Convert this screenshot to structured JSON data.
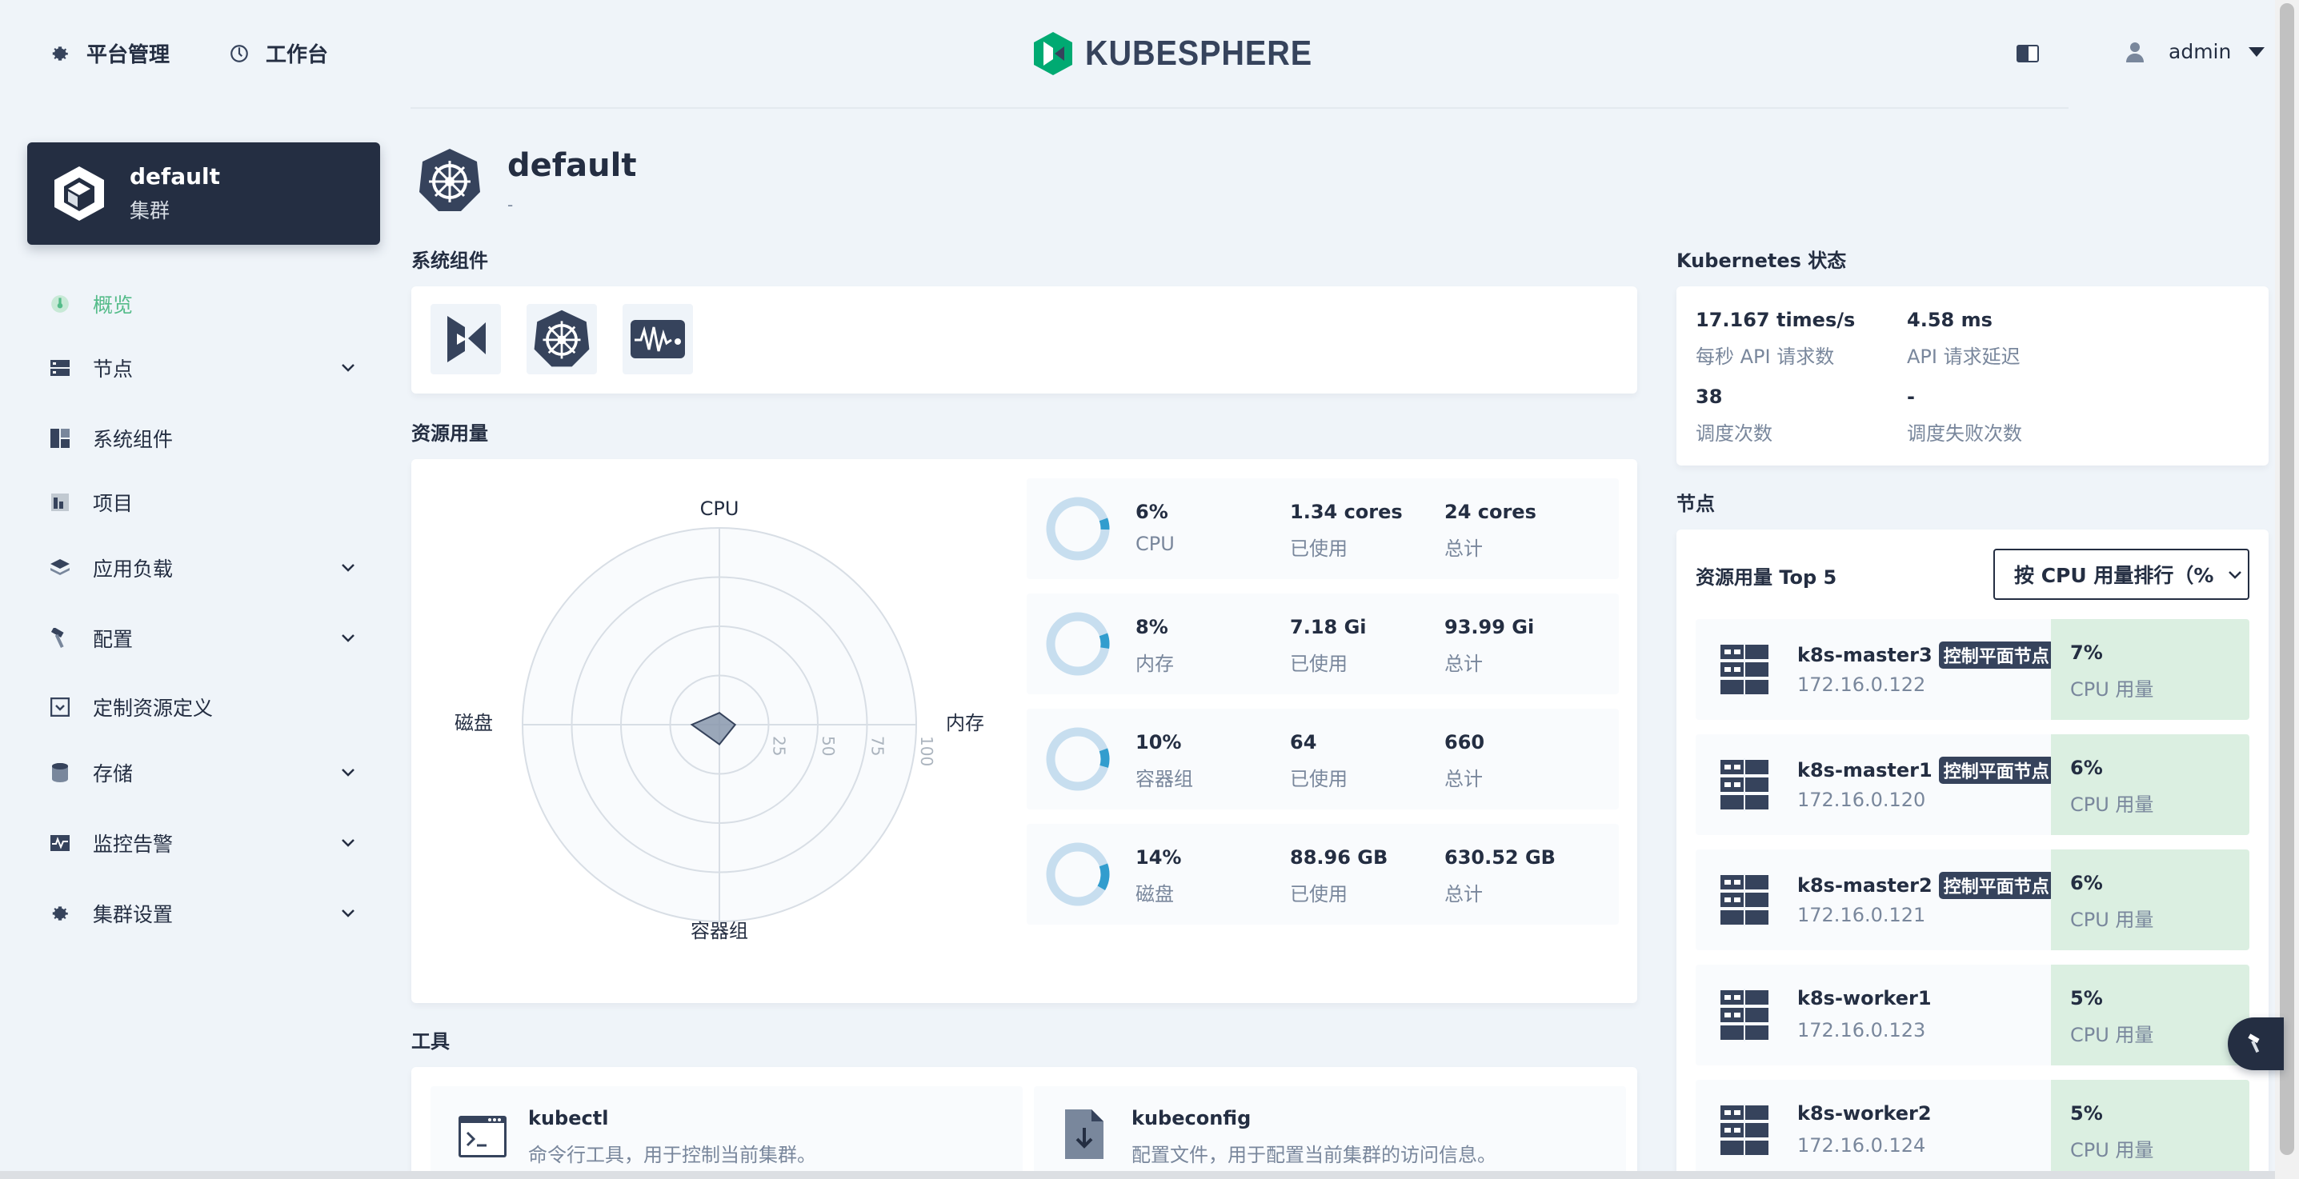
{
  "topnav": {
    "platform_label": "平台管理",
    "workbench_label": "工作台",
    "logo_text": "KUBESPHERE",
    "user_name": "admin"
  },
  "sidebar": {
    "cluster_name": "default",
    "cluster_type": "集群",
    "items": [
      {
        "label": "概览",
        "icon": "dashboard-icon"
      },
      {
        "label": "节点",
        "icon": "nodes-icon"
      },
      {
        "label": "系统组件",
        "icon": "components-icon"
      },
      {
        "label": "项目",
        "icon": "project-icon"
      },
      {
        "label": "应用负载",
        "icon": "workload-icon"
      },
      {
        "label": "配置",
        "icon": "hammer-icon"
      },
      {
        "label": "定制资源定义",
        "icon": "crd-icon"
      },
      {
        "label": "存储",
        "icon": "storage-icon"
      },
      {
        "label": "监控告警",
        "icon": "monitor-icon"
      },
      {
        "label": "集群设置",
        "icon": "gear-icon"
      }
    ]
  },
  "main": {
    "title": "default",
    "description": "-",
    "system_components_title": "系统组件",
    "resource_usage_title": "资源用量",
    "tools_title": "工具",
    "radar": {
      "axes": [
        "CPU",
        "内存",
        "容器组",
        "磁盘"
      ],
      "ticks": [
        "25",
        "50",
        "75",
        "100"
      ],
      "values": [
        6,
        8,
        10,
        14
      ]
    },
    "stats": [
      {
        "percent": "6%",
        "label": "CPU",
        "used": "1.34 cores",
        "used_label": "已使用",
        "total": "24 cores",
        "total_label": "总计",
        "fraction": 0.06
      },
      {
        "percent": "8%",
        "label": "内存",
        "used": "7.18 Gi",
        "used_label": "已使用",
        "total": "93.99 Gi",
        "total_label": "总计",
        "fraction": 0.08
      },
      {
        "percent": "10%",
        "label": "容器组",
        "used": "64",
        "used_label": "已使用",
        "total": "660",
        "total_label": "总计",
        "fraction": 0.1
      },
      {
        "percent": "14%",
        "label": "磁盘",
        "used": "88.96 GB",
        "used_label": "已使用",
        "total": "630.52 GB",
        "total_label": "总计",
        "fraction": 0.14
      }
    ],
    "tools": [
      {
        "name": "kubectl",
        "desc": "命令行工具，用于控制当前集群。"
      },
      {
        "name": "kubeconfig",
        "desc": "配置文件，用于配置当前集群的访问信息。"
      }
    ]
  },
  "k8s_status": {
    "title": "Kubernetes 状态",
    "api_rate": "17.167 times/s",
    "api_rate_label": "每秒 API 请求数",
    "api_latency": "4.58 ms",
    "api_latency_label": "API 请求延迟",
    "schedule_count": "38",
    "schedule_count_label": "调度次数",
    "schedule_fail": "-",
    "schedule_fail_label": "调度失败次数"
  },
  "nodes": {
    "title": "节点",
    "top_title": "资源用量 Top 5",
    "sort_label": "按 CPU 用量排行（%",
    "items": [
      {
        "name": "k8s-master3",
        "badge": "控制平面节点",
        "ip": "172.16.0.122",
        "usage": "7%",
        "usage_label": "CPU 用量"
      },
      {
        "name": "k8s-master1",
        "badge": "控制平面节点",
        "ip": "172.16.0.120",
        "usage": "6%",
        "usage_label": "CPU 用量"
      },
      {
        "name": "k8s-master2",
        "badge": "控制平面节点",
        "ip": "172.16.0.121",
        "usage": "6%",
        "usage_label": "CPU 用量"
      },
      {
        "name": "k8s-worker1",
        "badge": "",
        "ip": "172.16.0.123",
        "usage": "5%",
        "usage_label": "CPU 用量"
      },
      {
        "name": "k8s-worker2",
        "badge": "",
        "ip": "172.16.0.124",
        "usage": "5%",
        "usage_label": "CPU 用量"
      }
    ]
  }
}
